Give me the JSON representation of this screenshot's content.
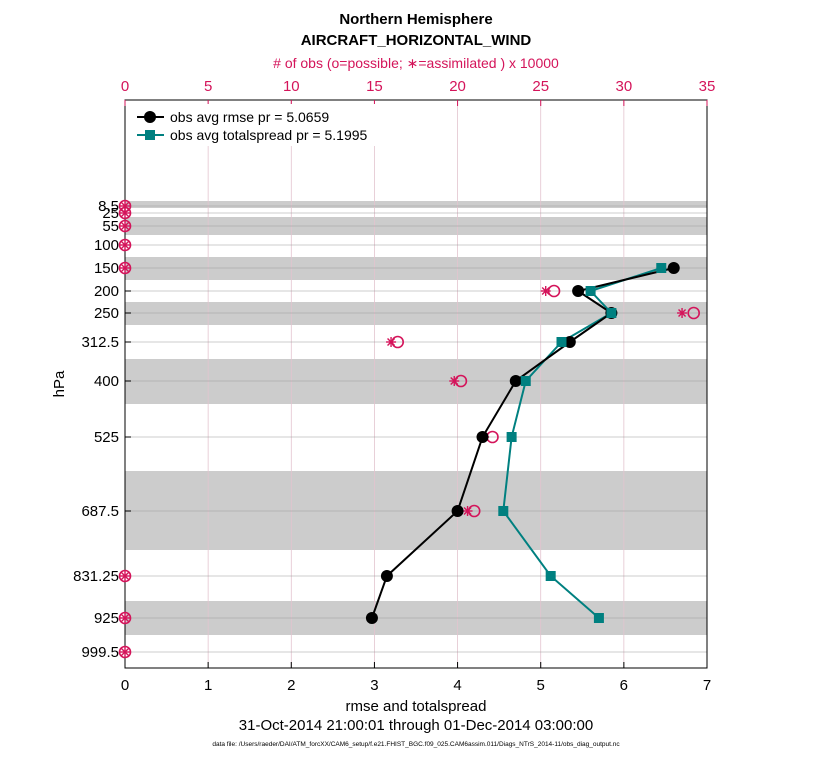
{
  "title": "Northern Hemisphere",
  "subtitle": "AIRCRAFT_HORIZONTAL_WIND",
  "colors": {
    "rmse": "#000000",
    "spread": "#008080",
    "obs": "#d4145a",
    "band": "#cccccc",
    "grid": "#d9d9d9"
  },
  "chart_data": {
    "type": "line",
    "xlabel": "rmse and totalspread",
    "ylabel": "hPa",
    "top_xlabel": "# of obs (o=possible; ∗=assimilated ) x 10000",
    "date_range": "31-Oct-2014 21:00:01 through 01-Dec-2014 03:00:00",
    "footnote": "data file: /Users/raeder/DAI/ATM_forcXX/CAM6_setup/f.e21.FHIST_BGC.f09_025.CAM6assim.011/Diags_NTrS_2014-11/obs_diag_output.nc",
    "xlim": [
      0,
      7
    ],
    "xticks": [
      "0",
      "1",
      "2",
      "3",
      "4",
      "5",
      "6",
      "7"
    ],
    "top_xlim": [
      0,
      35
    ],
    "top_xticks": [
      "0",
      "5",
      "10",
      "15",
      "20",
      "25",
      "30",
      "35"
    ],
    "levels": [
      8.5,
      25,
      55,
      100,
      150,
      200,
      250,
      312.5,
      400,
      525,
      687.5,
      831.25,
      925,
      999.5
    ],
    "level_labels": [
      "8.5",
      "25",
      "55",
      "100",
      "150",
      "200",
      "250",
      "312.5",
      "400",
      "525",
      "687.5",
      "831.25",
      "925",
      "999.5"
    ],
    "legend": [
      "obs avg rmse pr = 5.0659",
      "obs avg totalspread pr = 5.1995"
    ],
    "series": [
      {
        "name": "obs avg rmse",
        "levels": [
          150,
          200,
          250,
          312.5,
          400,
          525,
          687.5,
          831.25,
          925
        ],
        "values": [
          6.6,
          5.45,
          5.85,
          5.35,
          4.7,
          4.3,
          4.0,
          3.15,
          2.97
        ]
      },
      {
        "name": "obs avg totalspread",
        "levels": [
          150,
          200,
          250,
          312.5,
          400,
          525,
          687.5,
          831.25,
          925
        ],
        "values": [
          6.45,
          5.6,
          5.85,
          5.25,
          4.82,
          4.65,
          4.55,
          5.12,
          5.7
        ]
      }
    ],
    "obs_possible": {
      "levels": [
        8.5,
        25,
        55,
        100,
        150,
        200,
        250,
        312.5,
        400,
        525,
        687.5,
        831.25,
        925,
        999.5
      ],
      "values": [
        0,
        0,
        0,
        0,
        0,
        25.8,
        34.2,
        16.4,
        20.2,
        22.1,
        21.0,
        0,
        0,
        0
      ]
    },
    "obs_assimilated": {
      "levels": [
        8.5,
        25,
        55,
        100,
        150,
        200,
        250,
        312.5,
        400,
        525,
        687.5,
        831.25,
        925,
        999.5
      ],
      "values": [
        0,
        0,
        0,
        0,
        0,
        25.3,
        33.5,
        16.0,
        19.8,
        21.6,
        20.6,
        0,
        0,
        0
      ]
    }
  }
}
